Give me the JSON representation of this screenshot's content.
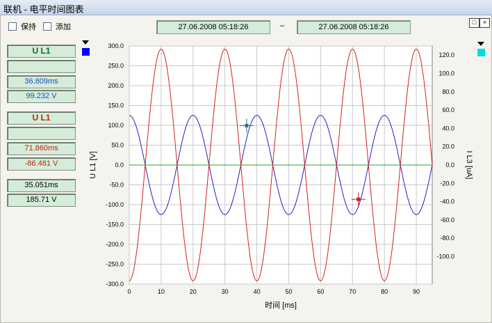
{
  "window": {
    "title": "联机 - 电平时间图表"
  },
  "options": {
    "hold_label": "保持",
    "add_label": "添加"
  },
  "time_range": {
    "start": "27.06.2008    05:18:26",
    "separator": "–",
    "end": "27.06.2008    05:18:26"
  },
  "window_buttons": {
    "restore": "□",
    "close": "×"
  },
  "cursor1": {
    "header": "U L1",
    "blank": "",
    "time": "36.809ms",
    "value": "99.232 V",
    "color": "#1a4bd0"
  },
  "cursor2": {
    "header": "U L1",
    "blank": "",
    "time": "71.860ms",
    "value": "-86.481 V",
    "color": "#c8200c"
  },
  "delta": {
    "time": "35.051ms",
    "value": "185.71 V"
  },
  "colors": {
    "left_channel": "#0000ff",
    "right_channel": "#00dcdc",
    "trace1": "#2020c0",
    "trace2": "#d02020",
    "zero_line": "#30a030"
  },
  "chart_data": {
    "type": "line",
    "xlabel": "时间 [ms]",
    "ylabel_left": "U L1 [V]",
    "ylabel_right": "I L3 [uA]",
    "xlim": [
      0,
      95
    ],
    "ylim_left": [
      -300,
      300
    ],
    "ylim_right": [
      -130,
      130
    ],
    "x_ticks": [
      "0",
      "10",
      "20",
      "30",
      "40",
      "50",
      "60",
      "70",
      "80",
      "90"
    ],
    "y_left_ticks": [
      "300.0",
      "250.0",
      "200.0",
      "150.0",
      "100.0",
      "50.0",
      "0.0",
      "-50.0",
      "-100.0",
      "-150.0",
      "-200.0",
      "-250.0",
      "-300.0"
    ],
    "y_right_ticks": [
      "120.0",
      "100.0",
      "80.0",
      "60.0",
      "40.0",
      "20.0",
      "0.0",
      "-20.0",
      "-40.0",
      "-60.0",
      "-80.0",
      "-100.0"
    ],
    "grid": true,
    "series": [
      {
        "amplitude": 125,
        "period_ms": 20,
        "phase_deg": 90,
        "axis": "left",
        "color": "#2020c0",
        "x": [
          0,
          2.5,
          5,
          7.5,
          10,
          12.5,
          15,
          17.5,
          20,
          22.5,
          25,
          27.5,
          30,
          32.5,
          35,
          37.5,
          40,
          42.5,
          45,
          47.5,
          50,
          52.5,
          55,
          57.5,
          60,
          62.5,
          65,
          67.5,
          70,
          72.5,
          75,
          77.5,
          80,
          82.5,
          85,
          87.5,
          90,
          92.5,
          95
        ],
        "y": [
          125,
          88,
          0,
          -88,
          -125,
          -88,
          0,
          88,
          125,
          88,
          0,
          -88,
          -125,
          -88,
          0,
          88,
          125,
          88,
          0,
          -88,
          -125,
          -88,
          0,
          88,
          125,
          88,
          0,
          -88,
          -125,
          -88,
          0,
          88,
          125,
          88,
          0,
          -88,
          -125,
          -88,
          0
        ]
      },
      {
        "amplitude": 292,
        "period_ms": 20,
        "phase_deg": -90,
        "axis": "left",
        "color": "#d02020",
        "x": [
          0,
          2.5,
          5,
          7.5,
          10,
          12.5,
          15,
          17.5,
          20,
          22.5,
          25,
          27.5,
          30,
          32.5,
          35,
          37.5,
          40,
          42.5,
          45,
          47.5,
          50,
          52.5,
          55,
          57.5,
          60,
          62.5,
          65,
          67.5,
          70,
          72.5,
          75,
          77.5,
          80,
          82.5,
          85,
          87.5,
          90,
          92.5,
          95
        ],
        "y": [
          -292,
          -206,
          0,
          206,
          292,
          206,
          0,
          -206,
          -292,
          -206,
          0,
          206,
          292,
          206,
          0,
          -206,
          -292,
          -206,
          0,
          206,
          292,
          206,
          0,
          -206,
          -292,
          -206,
          0,
          206,
          292,
          206,
          0,
          -206,
          -292,
          -206,
          0,
          206,
          292,
          206,
          0
        ]
      }
    ],
    "cursors": [
      {
        "x": 36.809,
        "y": 99.232,
        "color": "#2a7a6a"
      },
      {
        "x": 71.86,
        "y": -86.481,
        "color": "#c8200c"
      }
    ]
  }
}
